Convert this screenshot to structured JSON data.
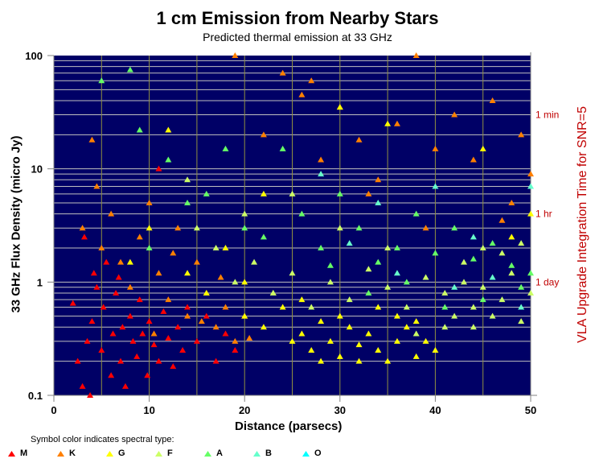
{
  "chart_data": {
    "type": "scatter",
    "title": "1 cm Emission from Nearby Stars",
    "subtitle": "Predicted thermal emission at 33 GHz",
    "xlabel": "Distance (parsecs)",
    "ylabel": "33 GHz Flux Density (micro Jy)",
    "y2label": "VLA Upgrade Integration Time for SNR=5",
    "xlim": [
      0,
      50
    ],
    "ylim": [
      0.1,
      100
    ],
    "yscale": "log",
    "xticks": [
      "0",
      "10",
      "20",
      "30",
      "40",
      "50"
    ],
    "yticks": [
      {
        "v": 100,
        "label": "100"
      },
      {
        "v": 10,
        "label": "10"
      },
      {
        "v": 1,
        "label": "1"
      },
      {
        "v": 0.1,
        "label": "0.1"
      }
    ],
    "y2ticks": [
      {
        "v": 30,
        "label": "1 min"
      },
      {
        "v": 4,
        "label": "1 hr"
      },
      {
        "v": 1,
        "label": "1 day"
      }
    ],
    "legend_title": "Symbol color indicates spectral type:",
    "series": [
      {
        "name": "M",
        "color": "#ff0000",
        "points": [
          [
            2,
            0.65
          ],
          [
            2.5,
            0.2
          ],
          [
            3,
            0.12
          ],
          [
            3.5,
            0.3
          ],
          [
            3.8,
            0.1
          ],
          [
            4,
            0.45
          ],
          [
            4.5,
            0.9
          ],
          [
            5,
            0.25
          ],
          [
            5.2,
            0.6
          ],
          [
            5.5,
            1.5
          ],
          [
            6,
            0.15
          ],
          [
            6.2,
            0.35
          ],
          [
            6.5,
            0.8
          ],
          [
            7,
            0.2
          ],
          [
            7.2,
            0.4
          ],
          [
            7.5,
            0.12
          ],
          [
            8,
            0.5
          ],
          [
            8.3,
            0.3
          ],
          [
            8.7,
            0.22
          ],
          [
            9,
            0.7
          ],
          [
            9.3,
            0.35
          ],
          [
            9.8,
            0.15
          ],
          [
            10,
            0.45
          ],
          [
            10.5,
            0.28
          ],
          [
            11,
            0.2
          ],
          [
            11,
            10
          ],
          [
            11.5,
            0.55
          ],
          [
            12,
            0.32
          ],
          [
            12.5,
            0.18
          ],
          [
            13,
            0.4
          ],
          [
            13.5,
            0.25
          ],
          [
            14,
            0.6
          ],
          [
            15,
            0.3
          ],
          [
            16,
            0.5
          ],
          [
            17,
            0.2
          ],
          [
            18,
            0.35
          ],
          [
            19,
            0.25
          ],
          [
            4.2,
            1.2
          ],
          [
            6.8,
            1.1
          ],
          [
            3.2,
            2.5
          ]
        ]
      },
      {
        "name": "K",
        "color": "#ff8000",
        "points": [
          [
            3,
            3
          ],
          [
            4,
            18
          ],
          [
            4.5,
            7
          ],
          [
            5,
            2
          ],
          [
            6,
            4
          ],
          [
            7,
            1.5
          ],
          [
            8,
            0.9
          ],
          [
            9,
            2.5
          ],
          [
            10,
            5
          ],
          [
            11,
            1.2
          ],
          [
            12,
            0.7
          ],
          [
            13,
            3
          ],
          [
            14,
            0.5
          ],
          [
            15,
            1.5
          ],
          [
            16,
            0.8
          ],
          [
            17,
            0.4
          ],
          [
            18,
            0.6
          ],
          [
            19,
            0.3
          ],
          [
            20,
            0.5
          ],
          [
            19,
            100
          ],
          [
            22,
            20
          ],
          [
            24,
            70
          ],
          [
            26,
            45
          ],
          [
            28,
            12
          ],
          [
            30,
            35
          ],
          [
            32,
            18
          ],
          [
            34,
            8
          ],
          [
            36,
            25
          ],
          [
            38,
            100
          ],
          [
            40,
            15
          ],
          [
            42,
            30
          ],
          [
            44,
            12
          ],
          [
            46,
            40
          ],
          [
            48,
            5
          ],
          [
            49,
            20
          ],
          [
            50,
            9
          ],
          [
            33,
            6
          ],
          [
            27,
            60
          ],
          [
            39,
            3
          ],
          [
            47,
            3.5
          ],
          [
            10.5,
            0.35
          ],
          [
            12.5,
            1.8
          ],
          [
            15.5,
            0.45
          ],
          [
            17.5,
            1.1
          ],
          [
            20.5,
            0.32
          ]
        ]
      },
      {
        "name": "G",
        "color": "#ffff00",
        "points": [
          [
            8,
            1.5
          ],
          [
            10,
            3
          ],
          [
            12,
            22
          ],
          [
            14,
            1.2
          ],
          [
            16,
            0.8
          ],
          [
            18,
            2
          ],
          [
            20,
            0.5
          ],
          [
            22,
            0.4
          ],
          [
            24,
            0.6
          ],
          [
            25,
            0.3
          ],
          [
            26,
            0.35
          ],
          [
            27,
            0.25
          ],
          [
            28,
            0.45
          ],
          [
            29,
            0.3
          ],
          [
            30,
            0.22
          ],
          [
            31,
            0.4
          ],
          [
            32,
            0.28
          ],
          [
            33,
            0.35
          ],
          [
            34,
            0.25
          ],
          [
            35,
            0.2
          ],
          [
            36,
            0.3
          ],
          [
            37,
            0.4
          ],
          [
            38,
            0.22
          ],
          [
            39,
            0.3
          ],
          [
            40,
            0.25
          ],
          [
            26,
            0.7
          ],
          [
            30,
            0.5
          ],
          [
            34,
            0.6
          ],
          [
            38,
            0.45
          ],
          [
            35,
            25
          ],
          [
            30,
            35
          ],
          [
            45,
            15
          ],
          [
            48,
            2.5
          ],
          [
            50,
            4
          ],
          [
            20,
            1
          ],
          [
            23,
            0.8
          ],
          [
            28,
            0.2
          ],
          [
            32,
            0.2
          ],
          [
            36,
            0.5
          ],
          [
            22,
            6
          ]
        ]
      },
      {
        "name": "F",
        "color": "#ccff66",
        "points": [
          [
            15,
            3
          ],
          [
            17,
            2
          ],
          [
            19,
            1
          ],
          [
            21,
            1.5
          ],
          [
            23,
            0.8
          ],
          [
            25,
            1.2
          ],
          [
            27,
            0.6
          ],
          [
            29,
            1
          ],
          [
            31,
            0.7
          ],
          [
            33,
            1.3
          ],
          [
            35,
            0.9
          ],
          [
            37,
            0.6
          ],
          [
            39,
            1.1
          ],
          [
            41,
            0.8
          ],
          [
            42,
            0.5
          ],
          [
            43,
            1
          ],
          [
            44,
            0.6
          ],
          [
            45,
            0.9
          ],
          [
            46,
            0.5
          ],
          [
            47,
            0.7
          ],
          [
            48,
            1.2
          ],
          [
            49,
            0.45
          ],
          [
            50,
            0.8
          ],
          [
            41,
            0.4
          ],
          [
            43,
            1.5
          ],
          [
            45,
            2
          ],
          [
            47,
            1.8
          ],
          [
            49,
            2.2
          ],
          [
            20,
            4
          ],
          [
            25,
            6
          ],
          [
            30,
            3
          ],
          [
            35,
            2
          ],
          [
            14,
            8
          ],
          [
            38,
            0.35
          ],
          [
            44,
            0.4
          ]
        ]
      },
      {
        "name": "A",
        "color": "#66ff66",
        "points": [
          [
            5,
            60
          ],
          [
            8,
            75
          ],
          [
            12,
            12
          ],
          [
            14,
            5
          ],
          [
            16,
            6
          ],
          [
            18,
            15
          ],
          [
            20,
            3
          ],
          [
            22,
            2.5
          ],
          [
            24,
            15
          ],
          [
            26,
            4
          ],
          [
            28,
            2
          ],
          [
            30,
            6
          ],
          [
            32,
            3
          ],
          [
            34,
            1.5
          ],
          [
            36,
            2
          ],
          [
            38,
            4
          ],
          [
            40,
            1.8
          ],
          [
            42,
            3
          ],
          [
            44,
            1.6
          ],
          [
            46,
            2.2
          ],
          [
            48,
            1.4
          ],
          [
            50,
            1.2
          ],
          [
            41,
            0.6
          ],
          [
            45,
            0.7
          ],
          [
            49,
            0.9
          ],
          [
            37,
            1
          ],
          [
            33,
            0.8
          ],
          [
            29,
            1.4
          ],
          [
            10,
            2
          ],
          [
            9,
            22
          ]
        ]
      },
      {
        "name": "B",
        "color": "#66ffcc",
        "points": [
          [
            28,
            9
          ],
          [
            34,
            5
          ],
          [
            40,
            7
          ],
          [
            44,
            2.5
          ],
          [
            46,
            1.1
          ],
          [
            49,
            0.6
          ],
          [
            42,
            0.9
          ],
          [
            36,
            1.2
          ],
          [
            31,
            2.2
          ],
          [
            50,
            7
          ]
        ]
      },
      {
        "name": "O",
        "color": "#00ffff",
        "points": []
      }
    ]
  }
}
